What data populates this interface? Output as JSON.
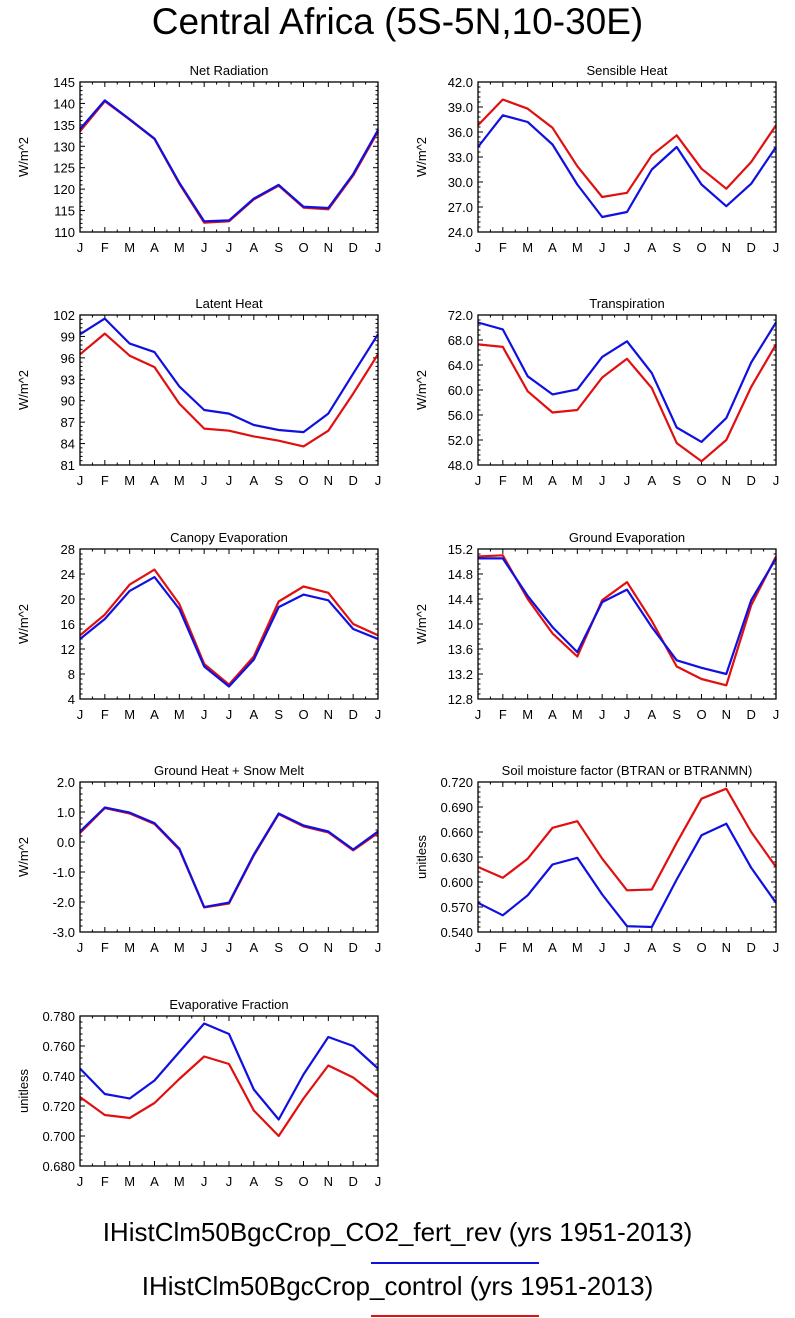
{
  "figure": {
    "title": "Central Africa (5S-5N,10-30E)",
    "series_names": [
      "IHistClm50BgcCrop_CO2_fert_rev",
      "IHistClm50BgcCrop_control"
    ],
    "legend": [
      {
        "name": "IHistClm50BgcCrop_CO2_fert_rev",
        "suffix": " (yrs 1951-2013)",
        "color": "#1010e0"
      },
      {
        "name": "IHistClm50BgcCrop_control",
        "suffix": " (yrs 1951-2013)",
        "color": "#e01010"
      }
    ]
  },
  "chart_data": [
    {
      "type": "line",
      "title": "Net Radiation",
      "ylabel": "W/m^2",
      "categories": [
        "J",
        "F",
        "M",
        "A",
        "M",
        "J",
        "J",
        "A",
        "S",
        "O",
        "N",
        "D",
        "J"
      ],
      "ylim": [
        110,
        145
      ],
      "yticks": [
        110,
        115,
        120,
        125,
        130,
        135,
        140,
        145
      ],
      "ytick_labels": [
        "110",
        "115",
        "120",
        "125",
        "130",
        "135",
        "140",
        "145"
      ],
      "series": [
        {
          "color": "#1010e0",
          "values": [
            134,
            140.7,
            136.3,
            131.8,
            121.5,
            112.5,
            112.7,
            117.8,
            121,
            115.9,
            115.6,
            123.5,
            133.8
          ]
        },
        {
          "color": "#e01010",
          "values": [
            133.5,
            140.5,
            136.2,
            131.7,
            121.3,
            112.2,
            112.5,
            117.6,
            120.8,
            115.7,
            115.3,
            123.2,
            133.4
          ]
        }
      ]
    },
    {
      "type": "line",
      "title": "Sensible Heat",
      "ylabel": "W/m^2",
      "categories": [
        "J",
        "F",
        "M",
        "A",
        "M",
        "J",
        "J",
        "A",
        "S",
        "O",
        "N",
        "D",
        "J"
      ],
      "ylim": [
        24,
        42
      ],
      "yticks": [
        24,
        27,
        30,
        33,
        36,
        39,
        42
      ],
      "ytick_labels": [
        "24.0",
        "27.0",
        "30.0",
        "33.0",
        "36.0",
        "39.0",
        "42.0"
      ],
      "series": [
        {
          "color": "#1010e0",
          "values": [
            34.2,
            38,
            37.2,
            34.5,
            29.7,
            25.8,
            26.4,
            31.5,
            34.2,
            29.7,
            27.1,
            29.8,
            34.2
          ]
        },
        {
          "color": "#e01010",
          "values": [
            36.8,
            39.9,
            38.8,
            36.5,
            31.9,
            28.2,
            28.7,
            33.2,
            35.6,
            31.6,
            29.2,
            32.4,
            36.8
          ]
        }
      ]
    },
    {
      "type": "line",
      "title": "Latent Heat",
      "ylabel": "W/m^2",
      "categories": [
        "J",
        "F",
        "M",
        "A",
        "M",
        "J",
        "J",
        "A",
        "S",
        "O",
        "N",
        "D",
        "J"
      ],
      "ylim": [
        81,
        102
      ],
      "yticks": [
        81,
        84,
        87,
        90,
        93,
        96,
        99,
        102
      ],
      "ytick_labels": [
        "81",
        "84",
        "87",
        "90",
        "93",
        "96",
        "99",
        "102"
      ],
      "series": [
        {
          "color": "#1010e0",
          "values": [
            99.3,
            101.5,
            98,
            96.8,
            92,
            88.7,
            88.2,
            86.6,
            85.9,
            85.6,
            88.2,
            93.8,
            99.3
          ]
        },
        {
          "color": "#e01010",
          "values": [
            96.5,
            99.4,
            96.3,
            94.7,
            89.6,
            86.1,
            85.8,
            85,
            84.4,
            83.6,
            85.8,
            91,
            96.5
          ]
        }
      ]
    },
    {
      "type": "line",
      "title": "Transpiration",
      "ylabel": "W/m^2",
      "categories": [
        "J",
        "F",
        "M",
        "A",
        "M",
        "J",
        "J",
        "A",
        "S",
        "O",
        "N",
        "D",
        "J"
      ],
      "ylim": [
        48,
        72
      ],
      "yticks": [
        48,
        52,
        56,
        60,
        64,
        68,
        72
      ],
      "ytick_labels": [
        "48.0",
        "52.0",
        "56.0",
        "60.0",
        "64.0",
        "68.0",
        "72.0"
      ],
      "series": [
        {
          "color": "#1010e0",
          "values": [
            70.8,
            69.7,
            62.2,
            59.3,
            60.1,
            65.3,
            67.8,
            62.7,
            54,
            51.7,
            55.5,
            64.4,
            70.8
          ]
        },
        {
          "color": "#e01010",
          "values": [
            67.3,
            66.9,
            59.8,
            56.4,
            56.8,
            62,
            65,
            60.3,
            51.5,
            48.6,
            52,
            60.5,
            67.3
          ]
        }
      ]
    },
    {
      "type": "line",
      "title": "Canopy Evaporation",
      "ylabel": "W/m^2",
      "categories": [
        "J",
        "F",
        "M",
        "A",
        "M",
        "J",
        "J",
        "A",
        "S",
        "O",
        "N",
        "D",
        "J"
      ],
      "ylim": [
        4,
        28
      ],
      "yticks": [
        4,
        8,
        12,
        16,
        20,
        24,
        28
      ],
      "ytick_labels": [
        "4",
        "8",
        "12",
        "16",
        "20",
        "24",
        "28"
      ],
      "series": [
        {
          "color": "#1010e0",
          "values": [
            13.6,
            16.8,
            21.3,
            23.5,
            18.4,
            9.2,
            6,
            10.3,
            18.7,
            20.7,
            19.8,
            15.2,
            13.6
          ]
        },
        {
          "color": "#e01010",
          "values": [
            14.2,
            17.5,
            22.3,
            24.7,
            19.2,
            9.6,
            6.3,
            10.8,
            19.6,
            22,
            21,
            16,
            14.2
          ]
        }
      ]
    },
    {
      "type": "line",
      "title": "Ground Evaporation",
      "ylabel": "W/m^2",
      "categories": [
        "J",
        "F",
        "M",
        "A",
        "M",
        "J",
        "J",
        "A",
        "S",
        "O",
        "N",
        "D",
        "J"
      ],
      "ylim": [
        12.8,
        15.2
      ],
      "yticks": [
        12.8,
        13.2,
        13.6,
        14,
        14.4,
        14.8,
        15.2
      ],
      "ytick_labels": [
        "12.8",
        "13.2",
        "13.6",
        "14.0",
        "14.4",
        "14.8",
        "15.2"
      ],
      "series": [
        {
          "color": "#1010e0",
          "values": [
            15.05,
            15.05,
            14.45,
            13.95,
            13.55,
            14.35,
            14.55,
            13.95,
            13.42,
            13.3,
            13.2,
            14.38,
            15.05
          ]
        },
        {
          "color": "#e01010",
          "values": [
            15.08,
            15.1,
            14.4,
            13.85,
            13.48,
            14.38,
            14.67,
            14.05,
            13.32,
            13.12,
            13.02,
            14.3,
            15.08
          ]
        }
      ]
    },
    {
      "type": "line",
      "title": "Ground Heat + Snow Melt",
      "ylabel": "W/m^2",
      "categories": [
        "J",
        "F",
        "M",
        "A",
        "M",
        "J",
        "J",
        "A",
        "S",
        "O",
        "N",
        "D",
        "J"
      ],
      "ylim": [
        -3,
        2
      ],
      "yticks": [
        -3,
        -2,
        -1,
        0,
        1,
        2
      ],
      "ytick_labels": [
        "-3.0",
        "-2.0",
        "-1.0",
        "0.0",
        "1.0",
        "2.0"
      ],
      "series": [
        {
          "color": "#1010e0",
          "values": [
            0.35,
            1.15,
            0.98,
            0.63,
            -0.22,
            -2.17,
            -2.02,
            -0.42,
            0.95,
            0.55,
            0.35,
            -0.25,
            0.35
          ]
        },
        {
          "color": "#e01010",
          "values": [
            0.3,
            1.13,
            0.95,
            0.6,
            -0.25,
            -2.18,
            -2.05,
            -0.45,
            0.93,
            0.52,
            0.32,
            -0.28,
            0.3
          ]
        }
      ]
    },
    {
      "type": "line",
      "title": "Soil moisture factor (BTRAN or BTRANMN)",
      "ylabel": "unitless",
      "categories": [
        "J",
        "F",
        "M",
        "A",
        "M",
        "J",
        "J",
        "A",
        "S",
        "O",
        "N",
        "D",
        "J"
      ],
      "ylim": [
        0.54,
        0.72
      ],
      "yticks": [
        0.54,
        0.57,
        0.6,
        0.63,
        0.66,
        0.69,
        0.72
      ],
      "ytick_labels": [
        "0.540",
        "0.570",
        "0.600",
        "0.630",
        "0.660",
        "0.690",
        "0.720"
      ],
      "series": [
        {
          "color": "#1010e0",
          "values": [
            0.575,
            0.56,
            0.584,
            0.621,
            0.629,
            0.585,
            0.547,
            0.546,
            0.603,
            0.656,
            0.67,
            0.617,
            0.575
          ]
        },
        {
          "color": "#e01010",
          "values": [
            0.618,
            0.605,
            0.628,
            0.665,
            0.673,
            0.628,
            0.59,
            0.591,
            0.647,
            0.7,
            0.712,
            0.66,
            0.618
          ]
        }
      ]
    },
    {
      "type": "line",
      "title": "Evaporative Fraction",
      "ylabel": "unitless",
      "categories": [
        "J",
        "F",
        "M",
        "A",
        "M",
        "J",
        "J",
        "A",
        "S",
        "O",
        "N",
        "D",
        "J"
      ],
      "ylim": [
        0.68,
        0.78
      ],
      "yticks": [
        0.68,
        0.7,
        0.72,
        0.74,
        0.76,
        0.78
      ],
      "ytick_labels": [
        "0.680",
        "0.700",
        "0.720",
        "0.740",
        "0.760",
        "0.780"
      ],
      "series": [
        {
          "color": "#1010e0",
          "values": [
            0.745,
            0.728,
            0.725,
            0.737,
            0.756,
            0.775,
            0.768,
            0.731,
            0.711,
            0.741,
            0.766,
            0.76,
            0.745
          ]
        },
        {
          "color": "#e01010",
          "values": [
            0.726,
            0.714,
            0.712,
            0.722,
            0.738,
            0.753,
            0.748,
            0.717,
            0.7,
            0.725,
            0.747,
            0.739,
            0.726
          ]
        }
      ]
    }
  ]
}
